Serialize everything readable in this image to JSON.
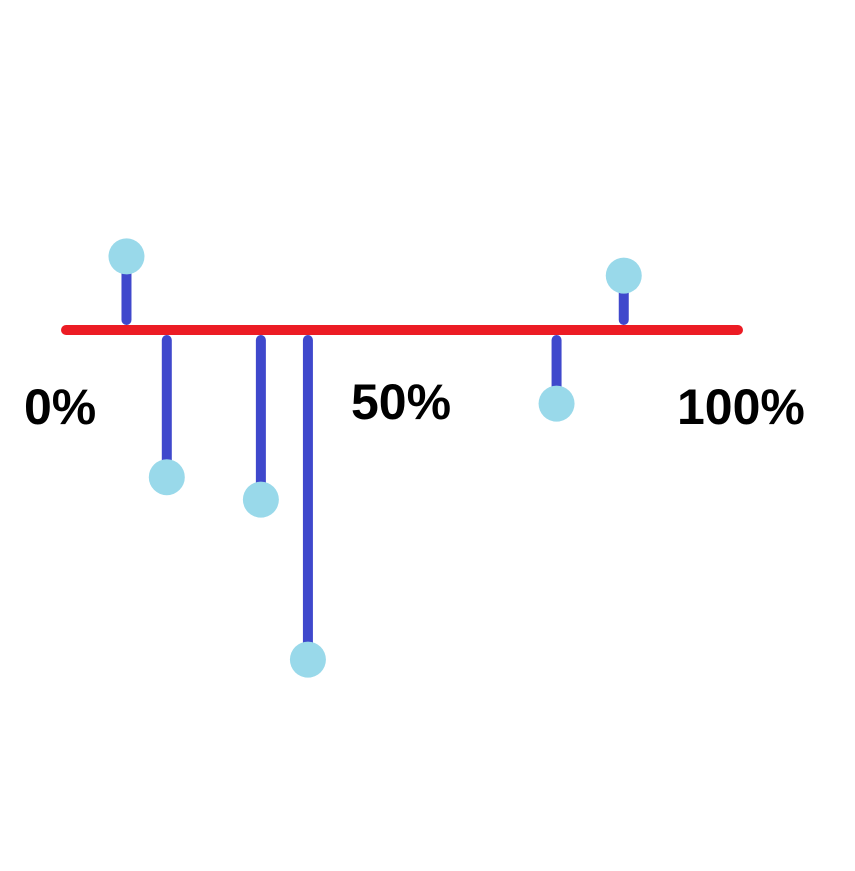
{
  "chart_data": {
    "type": "lollipop",
    "title": "",
    "xlabel": "",
    "ylabel": "",
    "x_ticks": [
      "0%",
      "50%",
      "100%"
    ],
    "x_tick_values": [
      0,
      50,
      100
    ],
    "xlim": [
      0,
      100
    ],
    "ylim": [
      -12,
      3
    ],
    "grid": false,
    "legend": "none",
    "points": [
      {
        "x": 9,
        "y": 2.3
      },
      {
        "x": 15,
        "y": -4.6
      },
      {
        "x": 29,
        "y": -5.3
      },
      {
        "x": 36,
        "y": -10.3
      },
      {
        "x": 73,
        "y": -2.3
      },
      {
        "x": 83,
        "y": 1.7
      }
    ],
    "colors": {
      "baseline": "#ec1c24",
      "stem": "#3f48cc",
      "marker": "#99d9ea"
    }
  }
}
